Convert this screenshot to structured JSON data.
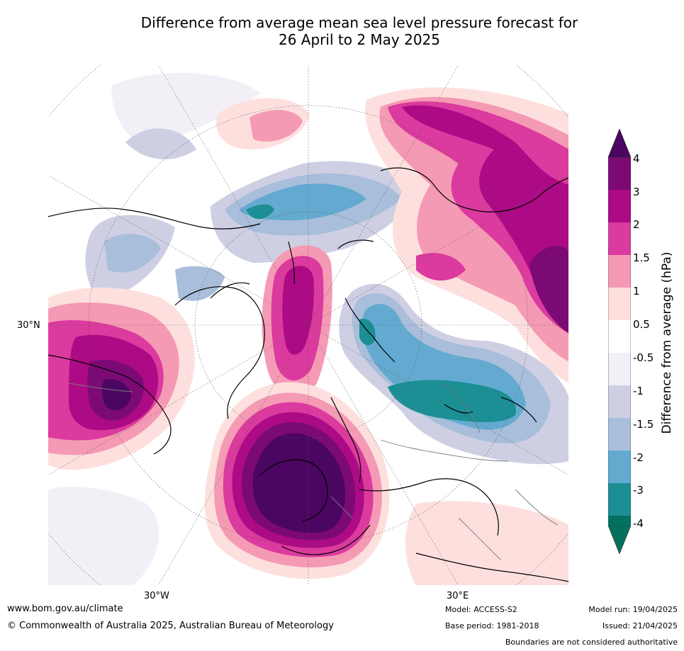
{
  "title": {
    "line1": "Difference from average mean sea level pressure forecast for",
    "line2": "26 April to 2 May 2025"
  },
  "map": {
    "projection": "polar stereographic (north)",
    "lon_labels": [
      "30°W",
      "30°E"
    ],
    "lat_labels": [
      "30°N"
    ]
  },
  "legend": {
    "title": "Difference from average (hPa)",
    "ticks": [
      "4",
      "3",
      "2",
      "1.5",
      "1",
      "0.5",
      "-0.5",
      "-1",
      "-1.5",
      "-2",
      "-3",
      "-4"
    ],
    "colors": [
      "#4a0660",
      "#7b0a75",
      "#ad0a85",
      "#db3a9e",
      "#f59ab4",
      "#fde0de",
      "#ffffff",
      "#f3eff7",
      "#cfcfe4",
      "#a8bedb",
      "#64aad0",
      "#1b8f94",
      "#04705e"
    ]
  },
  "footer": {
    "url": "www.bom.gov.au/climate",
    "copyright": "© Commonwealth of Australia 2025, Australian Bureau of Meteorology",
    "model": "Model: ACCESS-S2",
    "model_run": "Model run: 19/04/2025",
    "base_period": "Base period: 1981-2018",
    "issued": "Issued: 21/04/2025",
    "disclaimer": "Boundaries are not considered authoritative"
  }
}
